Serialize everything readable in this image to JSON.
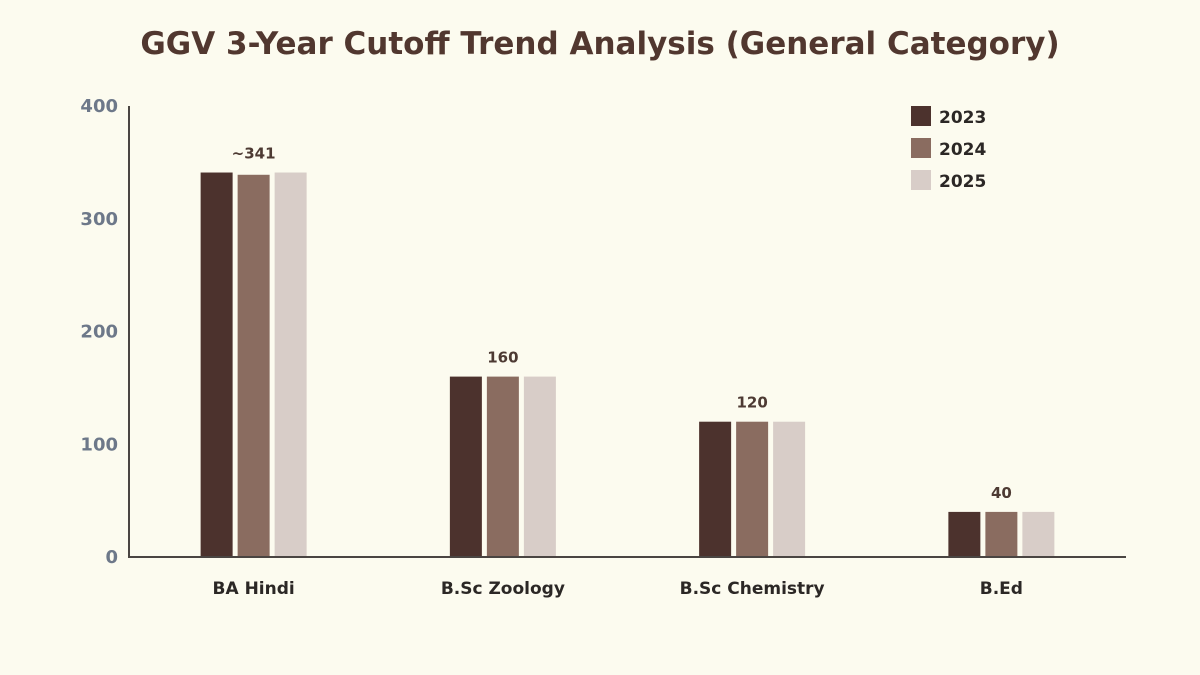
{
  "chart_data": {
    "type": "bar",
    "title": "GGV 3-Year Cutoff Trend Analysis (General Category)",
    "xlabel": "",
    "ylabel": "",
    "ylim": [
      0,
      400
    ],
    "yticks": [
      0,
      100,
      200,
      300,
      400
    ],
    "grid": false,
    "legend_position": "top-right",
    "categories": [
      "BA Hindi",
      "B.Sc Zoology",
      "B.Sc Chemistry",
      "B.Ed"
    ],
    "series": [
      {
        "name": "2023",
        "color": "#4c322d",
        "values": [
          341,
          160,
          120,
          40
        ]
      },
      {
        "name": "2024",
        "color": "#8a6c60",
        "values": [
          339,
          160,
          120,
          40
        ]
      },
      {
        "name": "2025",
        "color": "#d8cdc8",
        "values": [
          341,
          160,
          120,
          40
        ]
      }
    ],
    "data_labels": [
      "~341",
      "160",
      "120",
      "40"
    ]
  }
}
